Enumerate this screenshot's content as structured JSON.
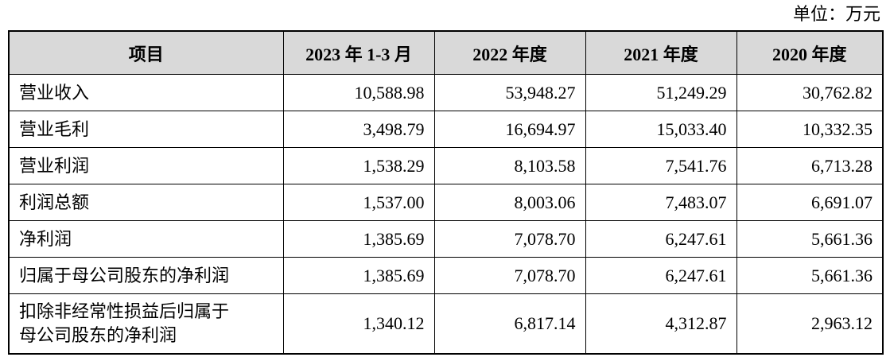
{
  "unit": "单位：万元",
  "table": {
    "header": [
      "项目",
      "2023 年 1-3 月",
      "2022 年度",
      "2021 年度",
      "2020 年度"
    ],
    "rows": [
      {
        "label": [
          "营业收入"
        ],
        "values": [
          "10,588.98",
          "53,948.27",
          "51,249.29",
          "30,762.82"
        ]
      },
      {
        "label": [
          "营业毛利"
        ],
        "values": [
          "3,498.79",
          "16,694.97",
          "15,033.40",
          "10,332.35"
        ]
      },
      {
        "label": [
          "营业利润"
        ],
        "values": [
          "1,538.29",
          "8,103.58",
          "7,541.76",
          "6,713.28"
        ]
      },
      {
        "label": [
          "利润总额"
        ],
        "values": [
          "1,537.00",
          "8,003.06",
          "7,483.07",
          "6,691.07"
        ]
      },
      {
        "label": [
          "净利润"
        ],
        "values": [
          "1,385.69",
          "7,078.70",
          "6,247.61",
          "5,661.36"
        ]
      },
      {
        "label": [
          "归属于母公司股东的净利润"
        ],
        "values": [
          "1,385.69",
          "7,078.70",
          "6,247.61",
          "5,661.36"
        ]
      },
      {
        "label": [
          "扣除非经常性损益后归属于",
          "母公司股东的净利润"
        ],
        "values": [
          "1,340.12",
          "6,817.14",
          "4,312.87",
          "2,963.12"
        ]
      }
    ]
  }
}
